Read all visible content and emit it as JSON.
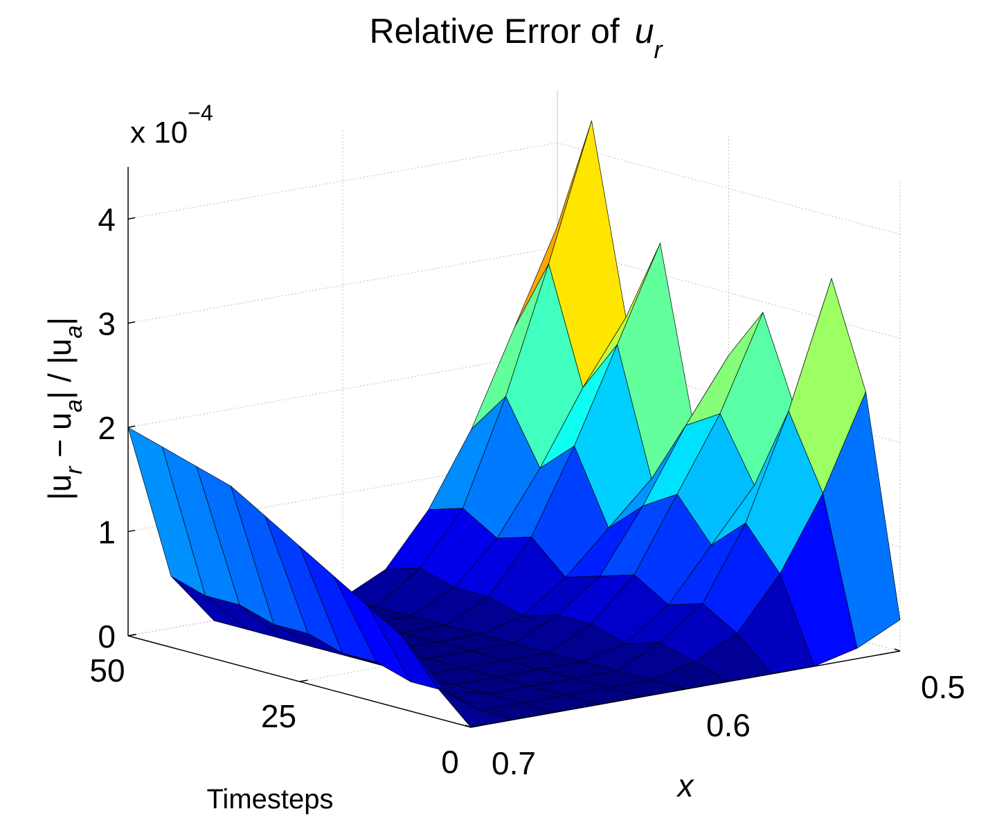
{
  "chart_data": {
    "type": "surface3d",
    "title": "Relative Error of",
    "title_symbol": "u",
    "title_subscript": "r",
    "zlabel_parts": [
      "|u",
      "r",
      " − u",
      "a",
      "| / |u",
      "a",
      "|"
    ],
    "multiplier": "x 10",
    "multiplier_exponent": "−4",
    "xlabel": "x",
    "tlabel": "Timesteps",
    "x": [
      0.5,
      0.52,
      0.54,
      0.56,
      0.58,
      0.6,
      0.62,
      0.64,
      0.66,
      0.68,
      0.7
    ],
    "t": [
      0,
      5,
      10,
      15,
      20,
      25,
      30,
      35,
      40,
      45,
      50
    ],
    "z": [
      [
        0.3,
        2.4,
        3.4,
        2.0,
        2.9,
        2.4,
        1.6,
        3.3,
        2.5,
        4.3,
        3.2
      ],
      [
        0.1,
        1.5,
        2.2,
        1.4,
        2.0,
        1.8,
        1.2,
        2.4,
        1.9,
        3.0,
        2.3
      ],
      [
        0,
        0.8,
        1.2,
        0.9,
        1.3,
        1.1,
        0.8,
        1.5,
        1.2,
        1.8,
        1.4
      ],
      [
        0,
        0.3,
        0.5,
        0.4,
        0.6,
        0.5,
        0.4,
        0.7,
        0.6,
        0.8,
        0.7
      ],
      [
        0,
        0.1,
        0.2,
        0.1,
        0.2,
        0.2,
        0.1,
        0.2,
        0.2,
        0.3,
        0.2
      ],
      [
        0,
        0,
        0,
        0,
        0,
        0,
        0,
        0,
        0,
        0,
        0
      ],
      [
        0,
        0,
        0,
        0,
        0,
        0,
        0,
        0,
        0,
        0,
        0
      ],
      [
        0,
        0,
        0,
        0,
        0,
        0,
        0,
        0,
        0,
        0,
        0
      ],
      [
        0,
        0,
        0,
        0,
        0,
        0,
        0,
        0,
        0,
        0,
        0
      ],
      [
        0,
        0,
        0.1,
        0.1,
        0.2,
        0.2,
        0.3,
        0.3,
        0.4,
        0.4,
        0.5
      ],
      [
        0,
        0.3,
        0.7,
        0.9,
        1.1,
        1.3,
        1.5,
        1.7,
        1.8,
        1.9,
        2.0
      ]
    ],
    "xlim": [
      0.5,
      0.7
    ],
    "xticks": [
      0.5,
      0.6,
      0.7
    ],
    "tlim": [
      0,
      50
    ],
    "tticks": [
      0,
      25,
      50
    ],
    "zlim": [
      0,
      4.5
    ],
    "zticks": [
      0,
      1,
      2,
      3,
      4
    ],
    "colormap": "jet",
    "edge_color": "#000000",
    "grid": true
  }
}
